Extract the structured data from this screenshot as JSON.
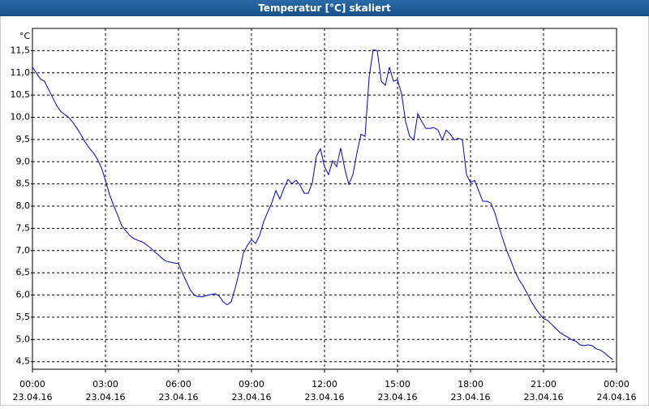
{
  "chart_data": {
    "type": "line",
    "title": "Temperatur [°C] skaliert",
    "y_unit": "°C",
    "x": [
      0,
      10,
      20,
      30,
      40,
      50,
      60,
      70,
      80,
      90,
      100,
      110,
      120,
      130,
      140,
      150,
      160,
      170,
      180,
      190,
      200,
      210,
      220,
      230,
      240,
      250,
      260,
      270,
      280,
      290,
      300,
      310,
      320,
      330,
      340,
      350,
      360,
      370,
      380,
      390,
      400,
      410,
      420,
      430,
      440,
      450,
      460,
      470,
      480,
      490,
      500,
      510,
      520,
      530,
      540,
      550,
      560,
      570,
      580,
      590,
      600,
      610,
      620,
      630,
      640,
      650,
      660,
      670,
      680,
      690,
      700,
      710,
      720,
      730,
      740,
      750,
      760,
      770,
      780,
      790,
      800,
      810,
      820,
      830,
      840,
      850,
      860,
      870,
      880,
      890,
      900,
      910,
      920,
      930,
      940,
      950,
      960,
      970,
      980,
      990,
      1000,
      1010,
      1020,
      1030,
      1040,
      1050,
      1060,
      1070,
      1080,
      1090,
      1100,
      1110,
      1120,
      1130,
      1140,
      1150,
      1160,
      1170,
      1180,
      1190,
      1200,
      1210,
      1220,
      1230,
      1240,
      1250,
      1260,
      1270,
      1280,
      1290,
      1300,
      1310,
      1320,
      1330,
      1340,
      1350,
      1360,
      1370,
      1380,
      1390,
      1400,
      1410,
      1420,
      1430
    ],
    "series": [
      {
        "color": "#0000c8",
        "values": [
          11.13,
          10.99,
          10.86,
          10.81,
          10.62,
          10.44,
          10.26,
          10.13,
          10.06,
          9.99,
          9.88,
          9.75,
          9.6,
          9.44,
          9.31,
          9.2,
          9.06,
          8.87,
          8.58,
          8.26,
          8.02,
          7.8,
          7.56,
          7.45,
          7.34,
          7.27,
          7.23,
          7.2,
          7.14,
          7.07,
          6.98,
          6.91,
          6.82,
          6.76,
          6.74,
          6.72,
          6.71,
          6.49,
          6.29,
          6.1,
          5.99,
          5.96,
          5.96,
          5.99,
          6.01,
          6.03,
          5.98,
          5.85,
          5.78,
          5.85,
          6.16,
          6.52,
          6.94,
          7.12,
          7.25,
          7.16,
          7.34,
          7.65,
          7.87,
          8.07,
          8.35,
          8.16,
          8.4,
          8.6,
          8.51,
          8.58,
          8.47,
          8.29,
          8.29,
          8.53,
          9.13,
          9.29,
          8.89,
          8.71,
          9.02,
          8.89,
          9.31,
          8.84,
          8.49,
          8.71,
          9.2,
          9.62,
          9.57,
          10.9,
          11.52,
          11.5,
          10.81,
          10.72,
          11.13,
          10.81,
          10.84,
          10.53,
          9.9,
          9.57,
          9.49,
          10.08,
          9.9,
          9.75,
          9.75,
          9.77,
          9.71,
          9.49,
          9.71,
          9.62,
          9.49,
          9.53,
          9.49,
          8.71,
          8.53,
          8.58,
          8.35,
          8.11,
          8.11,
          8.07,
          7.85,
          7.53,
          7.25,
          6.98,
          6.76,
          6.52,
          6.34,
          6.2,
          6.03,
          5.85,
          5.7,
          5.58,
          5.47,
          5.43,
          5.34,
          5.25,
          5.16,
          5.1,
          5.05,
          4.99,
          4.96,
          4.88,
          4.86,
          4.88,
          4.86,
          4.79,
          4.76,
          4.7,
          4.62,
          4.55
        ]
      }
    ],
    "xlim": [
      0,
      1440
    ],
    "xticks": [
      {
        "value": 0,
        "label": "00:00"
      },
      {
        "value": 180,
        "label": "03:00"
      },
      {
        "value": 360,
        "label": "06:00"
      },
      {
        "value": 540,
        "label": "09:00"
      },
      {
        "value": 720,
        "label": "12:00"
      },
      {
        "value": 900,
        "label": "15:00"
      },
      {
        "value": 1080,
        "label": "18:00"
      },
      {
        "value": 1260,
        "label": "21:00"
      },
      {
        "value": 1440,
        "label": "00:00"
      }
    ],
    "xtick_dates": [
      "23.04.16",
      "23.04.16",
      "23.04.16",
      "23.04.16",
      "23.04.16",
      "23.04.16",
      "23.04.16",
      "23.04.16",
      "24.04.16"
    ],
    "ylim": [
      4.33,
      12.0
    ],
    "yticks": [
      {
        "value": 4.5,
        "label": "4,5"
      },
      {
        "value": 5.0,
        "label": "5,0"
      },
      {
        "value": 5.5,
        "label": "5,5"
      },
      {
        "value": 6.0,
        "label": "6,0"
      },
      {
        "value": 6.5,
        "label": "6,5"
      },
      {
        "value": 7.0,
        "label": "7,0"
      },
      {
        "value": 7.5,
        "label": "7,5"
      },
      {
        "value": 8.0,
        "label": "8,0"
      },
      {
        "value": 8.5,
        "label": "8,5"
      },
      {
        "value": 9.0,
        "label": "9,0"
      },
      {
        "value": 9.5,
        "label": "9,5"
      },
      {
        "value": 10.0,
        "label": "10,0"
      },
      {
        "value": 10.5,
        "label": "10,5"
      },
      {
        "value": 11.0,
        "label": "11,0"
      },
      {
        "value": 11.5,
        "label": "11,5"
      }
    ],
    "grid": true
  }
}
